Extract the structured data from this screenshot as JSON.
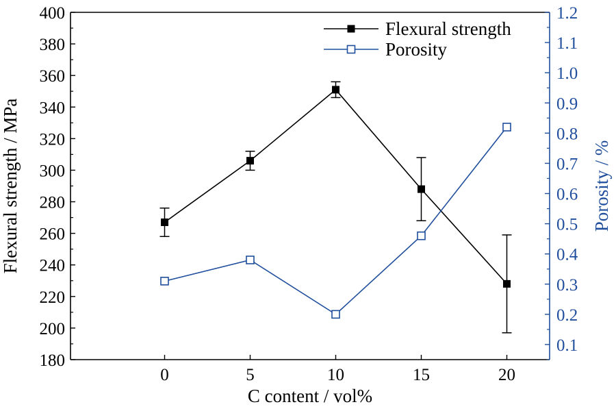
{
  "chart_data": {
    "type": "line",
    "x": [
      0,
      5,
      10,
      15,
      20
    ],
    "xlabel": "C content / vol%",
    "xlim": [
      -5.5,
      22.5
    ],
    "xticks": [
      0,
      5,
      10,
      15,
      20
    ],
    "ylabel_left": "Flexural strength / MPa",
    "ylim_left": [
      180,
      400
    ],
    "yticks_left": [
      180,
      200,
      220,
      240,
      260,
      280,
      300,
      320,
      340,
      360,
      380,
      400
    ],
    "ylabel_right": "Porosity / %",
    "ylim_right": [
      0.05,
      1.2
    ],
    "yticks_right": [
      "0.1",
      "0.2",
      "0.3",
      "0.4",
      "0.5",
      "0.6",
      "0.7",
      "0.8",
      "0.9",
      "1.0",
      "1.1",
      "1.2"
    ],
    "grid": false,
    "legend_position": "top-right",
    "series": [
      {
        "name": "Flexural strength",
        "axis": "left",
        "color": "#000000",
        "marker": "filled-square",
        "values": [
          267,
          306,
          351,
          288,
          228
        ],
        "error": [
          [
            9,
            9
          ],
          [
            6,
            6
          ],
          [
            5,
            5
          ],
          [
            20,
            20
          ],
          [
            31,
            31
          ]
        ]
      },
      {
        "name": "Porosity",
        "axis": "right",
        "color": "#1f4e9c",
        "marker": "open-square",
        "values": [
          0.31,
          0.38,
          0.2,
          0.46,
          0.82
        ]
      }
    ]
  }
}
